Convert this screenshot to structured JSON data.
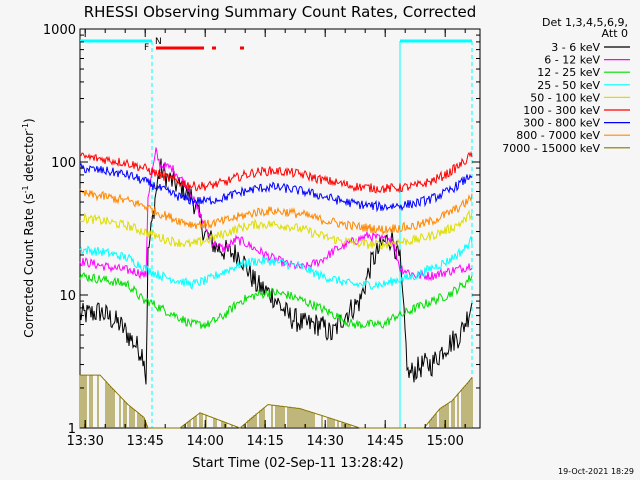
{
  "chart_data": {
    "type": "line",
    "title": "RHESSI Observing Summary Count Rates, Corrected",
    "xlabel": "Start Time (02-Sep-11 13:28:42)",
    "ylabel_main": "Corrected Count Rate (s",
    "ylabel_sup1": "-1",
    "ylabel_mid": " detector",
    "ylabel_sup2": "-1",
    "ylabel_end": ")",
    "y_scale": "log",
    "ylim": [
      1,
      1000
    ],
    "xlim_minutes": [
      0,
      100
    ],
    "x_ticks": [
      "13:30",
      "13:45",
      "14:00",
      "14:15",
      "14:30",
      "14:45",
      "15:00"
    ],
    "x_tick_minutes": [
      1.3,
      16.3,
      31.3,
      46.3,
      61.3,
      76.3,
      91.3
    ],
    "y_ticks": [
      "1",
      "10",
      "100",
      "1000"
    ],
    "y_tick_values": [
      1,
      10,
      100,
      1000
    ],
    "legend_header": [
      "Det 1,3,4,5,6,9,",
      "Att 0"
    ],
    "legend_position": "right",
    "series": [
      {
        "name": "3 - 6 keV",
        "color": "#000000",
        "points": [
          [
            0,
            7
          ],
          [
            5,
            7.5
          ],
          [
            10,
            6
          ],
          [
            16,
            3.5
          ],
          [
            16.5,
            2.2
          ],
          [
            17,
            20
          ],
          [
            19,
            60
          ],
          [
            20,
            90
          ],
          [
            22,
            75
          ],
          [
            25,
            65
          ],
          [
            28,
            55
          ],
          [
            31,
            30
          ],
          [
            34,
            23
          ],
          [
            37,
            21
          ],
          [
            40,
            20
          ],
          [
            44,
            12
          ],
          [
            48,
            10
          ],
          [
            52,
            7
          ],
          [
            56,
            6
          ],
          [
            60,
            6
          ],
          [
            63,
            5
          ],
          [
            66,
            7
          ],
          [
            70,
            9
          ],
          [
            73,
            18
          ],
          [
            76,
            25
          ],
          [
            78,
            27
          ],
          [
            80,
            18
          ],
          [
            82,
            2.5
          ],
          [
            86,
            3
          ],
          [
            88,
            3
          ],
          [
            91,
            4
          ],
          [
            95,
            5
          ],
          [
            97,
            7
          ],
          [
            98,
            9
          ]
        ]
      },
      {
        "name": "6 - 12 keV",
        "color": "#ff00ff",
        "points": [
          [
            0,
            18
          ],
          [
            8,
            16
          ],
          [
            14,
            15
          ],
          [
            16.5,
            14
          ],
          [
            17,
            55
          ],
          [
            19,
            120
          ],
          [
            20,
            95
          ],
          [
            23,
            90
          ],
          [
            27,
            65
          ],
          [
            30,
            40
          ],
          [
            33,
            25
          ],
          [
            36,
            22
          ],
          [
            39,
            26
          ],
          [
            41,
            25
          ],
          [
            44,
            22
          ],
          [
            48,
            19
          ],
          [
            52,
            17
          ],
          [
            56,
            16
          ],
          [
            60,
            18
          ],
          [
            64,
            22
          ],
          [
            68,
            25
          ],
          [
            72,
            28
          ],
          [
            76,
            26
          ],
          [
            78,
            27
          ],
          [
            80,
            16
          ],
          [
            84,
            14
          ],
          [
            88,
            14
          ],
          [
            92,
            15
          ],
          [
            96,
            16
          ],
          [
            98,
            17
          ]
        ]
      },
      {
        "name": "12 - 25 keV",
        "color": "#00dd00",
        "points": [
          [
            0,
            14
          ],
          [
            6,
            13
          ],
          [
            12,
            12
          ],
          [
            16,
            9
          ],
          [
            17,
            9
          ],
          [
            20,
            8
          ],
          [
            24,
            7
          ],
          [
            28,
            6
          ],
          [
            32,
            6
          ],
          [
            36,
            7
          ],
          [
            40,
            9
          ],
          [
            44,
            10
          ],
          [
            48,
            10.5
          ],
          [
            52,
            10
          ],
          [
            56,
            9
          ],
          [
            60,
            8
          ],
          [
            64,
            7
          ],
          [
            68,
            6
          ],
          [
            72,
            6
          ],
          [
            76,
            6
          ],
          [
            79,
            7
          ],
          [
            80,
            7
          ],
          [
            84,
            8
          ],
          [
            88,
            9
          ],
          [
            92,
            10
          ],
          [
            96,
            12
          ],
          [
            98,
            14
          ]
        ]
      },
      {
        "name": "25 - 50 keV",
        "color": "#00ffff",
        "points": [
          [
            0,
            22
          ],
          [
            6,
            21
          ],
          [
            12,
            19
          ],
          [
            16,
            16
          ],
          [
            20,
            14
          ],
          [
            24,
            13
          ],
          [
            28,
            12
          ],
          [
            32,
            13
          ],
          [
            36,
            15
          ],
          [
            40,
            17
          ],
          [
            44,
            18
          ],
          [
            48,
            18
          ],
          [
            52,
            17
          ],
          [
            56,
            16
          ],
          [
            60,
            14
          ],
          [
            64,
            13
          ],
          [
            68,
            12
          ],
          [
            72,
            12
          ],
          [
            76,
            12
          ],
          [
            79,
            13
          ],
          [
            80,
            13
          ],
          [
            84,
            14
          ],
          [
            88,
            16
          ],
          [
            92,
            18
          ],
          [
            96,
            22
          ],
          [
            98,
            26
          ]
        ]
      },
      {
        "name": "50 - 100 keV",
        "color": "#dddd00",
        "points": [
          [
            0,
            38
          ],
          [
            6,
            36
          ],
          [
            12,
            33
          ],
          [
            16,
            30
          ],
          [
            20,
            27
          ],
          [
            24,
            25
          ],
          [
            28,
            24
          ],
          [
            32,
            26
          ],
          [
            36,
            29
          ],
          [
            40,
            32
          ],
          [
            44,
            34
          ],
          [
            48,
            34
          ],
          [
            52,
            33
          ],
          [
            56,
            31
          ],
          [
            60,
            28
          ],
          [
            64,
            26
          ],
          [
            68,
            25
          ],
          [
            72,
            24
          ],
          [
            76,
            24
          ],
          [
            79,
            25
          ],
          [
            80,
            25
          ],
          [
            84,
            26
          ],
          [
            88,
            28
          ],
          [
            92,
            31
          ],
          [
            96,
            36
          ],
          [
            98,
            42
          ]
        ]
      },
      {
        "name": "100 - 300 keV",
        "color": "#ff0000",
        "points": [
          [
            0,
            110
          ],
          [
            6,
            105
          ],
          [
            12,
            98
          ],
          [
            16,
            90
          ],
          [
            20,
            80
          ],
          [
            24,
            72
          ],
          [
            28,
            66
          ],
          [
            32,
            66
          ],
          [
            36,
            70
          ],
          [
            40,
            78
          ],
          [
            44,
            84
          ],
          [
            48,
            86
          ],
          [
            52,
            84
          ],
          [
            56,
            80
          ],
          [
            60,
            74
          ],
          [
            64,
            70
          ],
          [
            68,
            66
          ],
          [
            72,
            64
          ],
          [
            76,
            63
          ],
          [
            79,
            64
          ],
          [
            80,
            64
          ],
          [
            84,
            66
          ],
          [
            88,
            72
          ],
          [
            92,
            82
          ],
          [
            96,
            100
          ],
          [
            98,
            115
          ]
        ]
      },
      {
        "name": "300 - 800 keV",
        "color": "#0000ff",
        "points": [
          [
            0,
            90
          ],
          [
            6,
            86
          ],
          [
            12,
            80
          ],
          [
            16,
            72
          ],
          [
            20,
            63
          ],
          [
            24,
            56
          ],
          [
            28,
            51
          ],
          [
            32,
            51
          ],
          [
            36,
            54
          ],
          [
            40,
            59
          ],
          [
            44,
            63
          ],
          [
            48,
            65
          ],
          [
            52,
            63
          ],
          [
            56,
            60
          ],
          [
            60,
            56
          ],
          [
            64,
            52
          ],
          [
            68,
            49
          ],
          [
            72,
            47
          ],
          [
            76,
            46
          ],
          [
            79,
            47
          ],
          [
            80,
            47
          ],
          [
            84,
            49
          ],
          [
            88,
            53
          ],
          [
            92,
            60
          ],
          [
            96,
            72
          ],
          [
            98,
            82
          ]
        ]
      },
      {
        "name": "800 - 7000 keV",
        "color": "#ff8800",
        "points": [
          [
            0,
            58
          ],
          [
            6,
            55
          ],
          [
            12,
            51
          ],
          [
            16,
            47
          ],
          [
            20,
            41
          ],
          [
            24,
            37
          ],
          [
            28,
            34
          ],
          [
            32,
            34
          ],
          [
            36,
            36
          ],
          [
            40,
            39
          ],
          [
            44,
            42
          ],
          [
            48,
            43
          ],
          [
            52,
            42
          ],
          [
            56,
            40
          ],
          [
            60,
            37
          ],
          [
            64,
            35
          ],
          [
            68,
            33
          ],
          [
            72,
            32
          ],
          [
            76,
            31
          ],
          [
            79,
            32
          ],
          [
            80,
            32
          ],
          [
            84,
            33
          ],
          [
            88,
            36
          ],
          [
            92,
            41
          ],
          [
            96,
            48
          ],
          [
            98,
            55
          ]
        ]
      },
      {
        "name": "7000 - 15000 keV",
        "color": "#887700",
        "points": [
          [
            0,
            2.5
          ],
          [
            5,
            2.5
          ],
          [
            8,
            2
          ],
          [
            12,
            1.5
          ],
          [
            16,
            1.2
          ],
          [
            17,
            1
          ],
          [
            25,
            1
          ],
          [
            30,
            1.3
          ],
          [
            40,
            1
          ],
          [
            47,
            1.5
          ],
          [
            55,
            1.4
          ],
          [
            62,
            1.2
          ],
          [
            70,
            1
          ],
          [
            79,
            1
          ],
          [
            80,
            1
          ],
          [
            86,
            1
          ],
          [
            90,
            1.4
          ],
          [
            93,
            1.6
          ],
          [
            97,
            2.2
          ],
          [
            98,
            2.4
          ]
        ]
      }
    ],
    "markers": [
      {
        "label": "F",
        "color": "#ff0000"
      },
      {
        "label": "N",
        "color": "#00ffff"
      }
    ],
    "flare_bar_segments_minutes": [
      [
        19,
        31
      ],
      [
        33,
        34
      ],
      [
        40,
        41
      ]
    ],
    "night_bar_segments_minutes": [
      [
        0,
        18
      ],
      [
        80,
        98
      ]
    ],
    "night_edges_minutes": [
      18,
      80,
      98
    ]
  },
  "footer": {
    "timestamp": "19-Oct-2021 18:29"
  }
}
